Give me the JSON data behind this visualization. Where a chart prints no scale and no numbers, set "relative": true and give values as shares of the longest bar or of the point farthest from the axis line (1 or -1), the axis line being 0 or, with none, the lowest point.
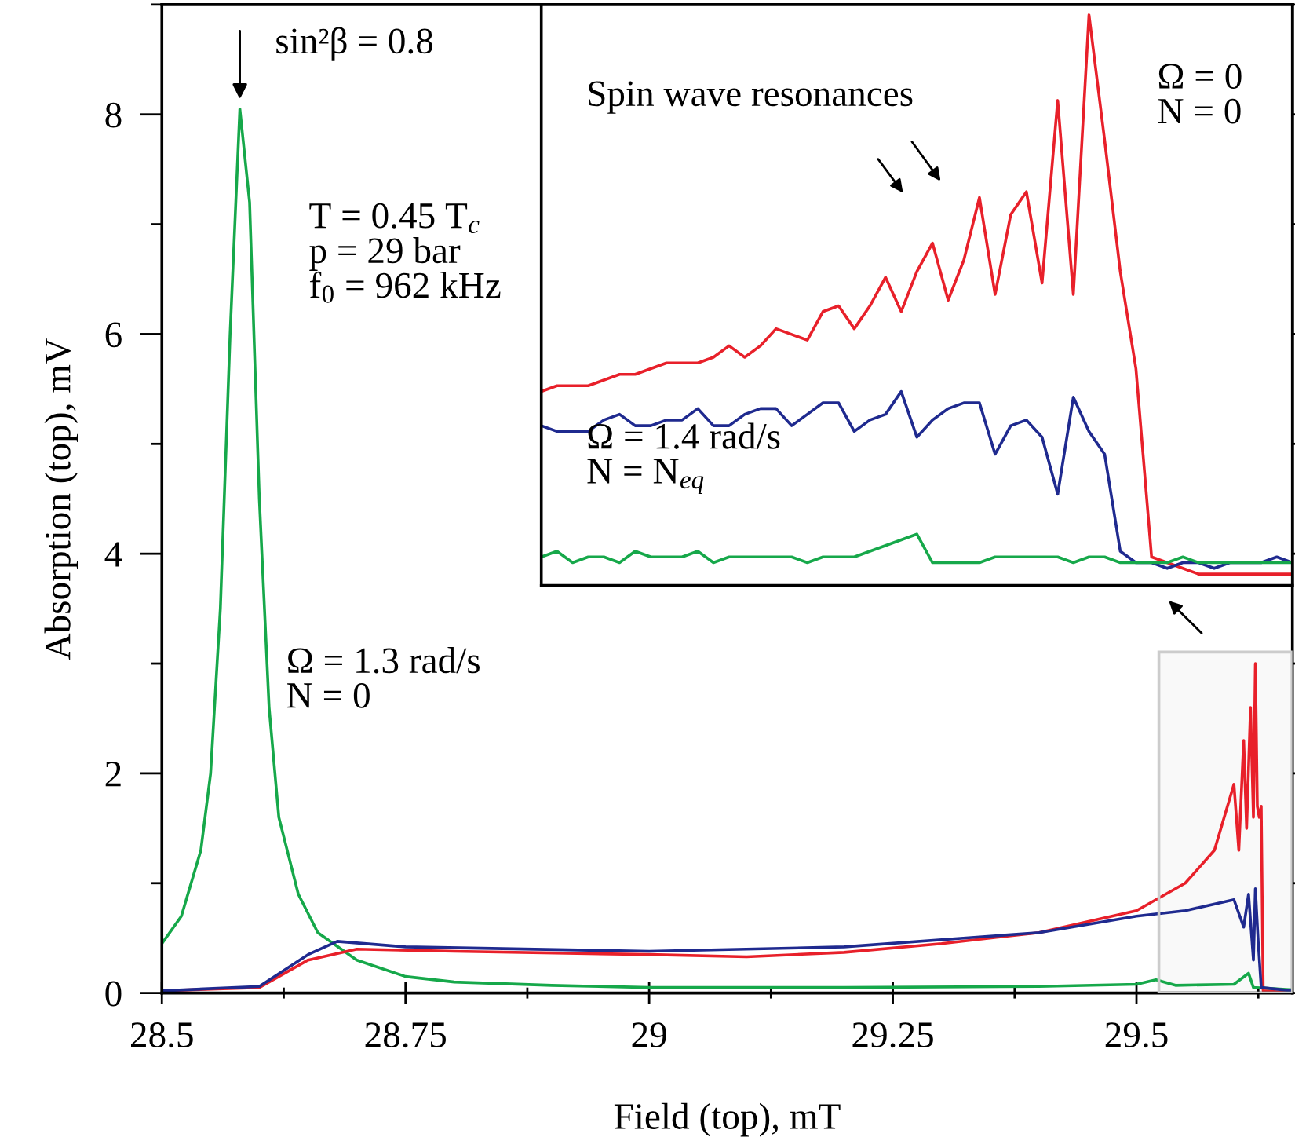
{
  "chart_data": [
    {
      "type": "line",
      "xlabel": "Field (top), mT",
      "ylabel": "Absorption (top), mV",
      "xlim": [
        28.5,
        29.66
      ],
      "ylim": [
        0,
        9
      ],
      "xticks": [
        28.5,
        28.75,
        29,
        29.25,
        29.5
      ],
      "yticks": [
        0,
        2,
        4,
        6,
        8
      ],
      "grid": false,
      "legend": false,
      "series": [
        {
          "color": "#16a84a",
          "x": [
            28.5,
            28.52,
            28.54,
            28.55,
            28.56,
            28.57,
            28.58,
            28.59,
            28.6,
            28.61,
            28.62,
            28.64,
            28.66,
            28.7,
            28.75,
            28.8,
            28.9,
            29.0,
            29.2,
            29.4,
            29.5,
            29.52,
            29.54,
            29.6,
            29.615,
            29.62,
            29.66
          ],
          "values": [
            0.45,
            0.7,
            1.3,
            2.0,
            3.5,
            6.0,
            8.05,
            7.2,
            4.5,
            2.6,
            1.6,
            0.9,
            0.55,
            0.3,
            0.15,
            0.1,
            0.07,
            0.05,
            0.05,
            0.06,
            0.08,
            0.12,
            0.07,
            0.08,
            0.18,
            0.05,
            0.03
          ]
        },
        {
          "color": "#e8202a",
          "x": [
            28.5,
            28.6,
            28.65,
            28.7,
            28.8,
            29.0,
            29.1,
            29.2,
            29.3,
            29.4,
            29.5,
            29.55,
            29.58,
            29.6,
            29.605,
            29.61,
            29.613,
            29.617,
            29.62,
            29.622,
            29.624,
            29.626,
            29.628,
            29.63,
            29.66
          ],
          "values": [
            0.02,
            0.05,
            0.3,
            0.4,
            0.38,
            0.35,
            0.33,
            0.37,
            0.45,
            0.55,
            0.75,
            1.0,
            1.3,
            1.9,
            1.3,
            2.3,
            1.5,
            2.6,
            1.6,
            3.0,
            1.7,
            1.6,
            1.7,
            0.02,
            0.0
          ]
        },
        {
          "color": "#1f2a8f",
          "x": [
            28.5,
            28.6,
            28.65,
            28.68,
            28.75,
            29.0,
            29.2,
            29.4,
            29.5,
            29.55,
            29.6,
            29.61,
            29.615,
            29.62,
            29.622,
            29.625,
            29.628,
            29.66
          ],
          "values": [
            0.02,
            0.06,
            0.35,
            0.47,
            0.42,
            0.38,
            0.42,
            0.55,
            0.7,
            0.75,
            0.85,
            0.6,
            0.9,
            0.3,
            0.95,
            0.45,
            0.05,
            0.02
          ]
        }
      ],
      "bands": [
        {
          "axis": "x",
          "from": 29.523,
          "to": 29.66,
          "color": "#cccccc"
        }
      ],
      "annotations": [
        {
          "text": "sin²β = 0.8",
          "x": 28.58,
          "y": 8.05
        },
        "T = 0.45 T$_{c}$\np = 29 bar\nf$_{0}$ = 962 kHz",
        "Ω = 1.3 rad/s\nN = 0"
      ]
    },
    {
      "type": "line",
      "relative": true,
      "legend": false,
      "categories": [
        null,
        null,
        null,
        null,
        null,
        null,
        null,
        null,
        null,
        null,
        null,
        null,
        null,
        null,
        null,
        null,
        null,
        null,
        null,
        null,
        null,
        null,
        null,
        null,
        null,
        null,
        null,
        null,
        null,
        null,
        null,
        null,
        null,
        null,
        null,
        null,
        null,
        null,
        null,
        null,
        null,
        null,
        null,
        null,
        null,
        null,
        null,
        null,
        null
      ],
      "series": [
        {
          "color": "#e8202a",
          "values": [
            0.34,
            0.35,
            0.35,
            0.35,
            0.36,
            0.37,
            0.37,
            0.38,
            0.39,
            0.39,
            0.39,
            0.4,
            0.42,
            0.4,
            0.42,
            0.45,
            0.44,
            0.43,
            0.48,
            0.49,
            0.45,
            0.49,
            0.54,
            0.48,
            0.55,
            0.6,
            0.5,
            0.57,
            0.68,
            0.51,
            0.65,
            0.69,
            0.53,
            0.85,
            0.51,
            1.0,
            0.78,
            0.55,
            0.38,
            0.05,
            0.04,
            0.03,
            0.02,
            0.02,
            0.02,
            0.02,
            0.02,
            0.02,
            0.02
          ]
        },
        {
          "color": "#1f2a8f",
          "values": [
            0.28,
            0.27,
            0.27,
            0.27,
            0.29,
            0.3,
            0.28,
            0.28,
            0.29,
            0.29,
            0.31,
            0.28,
            0.28,
            0.3,
            0.31,
            0.31,
            0.28,
            0.3,
            0.32,
            0.32,
            0.27,
            0.29,
            0.3,
            0.34,
            0.26,
            0.29,
            0.31,
            0.32,
            0.32,
            0.23,
            0.28,
            0.29,
            0.26,
            0.16,
            0.33,
            0.27,
            0.23,
            0.06,
            0.04,
            0.04,
            0.03,
            0.04,
            0.04,
            0.03,
            0.04,
            0.04,
            0.04,
            0.05,
            0.04
          ]
        },
        {
          "color": "#16a84a",
          "values": [
            0.05,
            0.06,
            0.04,
            0.05,
            0.05,
            0.04,
            0.06,
            0.05,
            0.05,
            0.05,
            0.06,
            0.04,
            0.05,
            0.05,
            0.05,
            0.05,
            0.05,
            0.04,
            0.05,
            0.05,
            0.05,
            0.06,
            0.07,
            0.08,
            0.09,
            0.04,
            0.04,
            0.04,
            0.04,
            0.05,
            0.05,
            0.05,
            0.05,
            0.05,
            0.04,
            0.05,
            0.05,
            0.04,
            0.04,
            0.04,
            0.04,
            0.05,
            0.04,
            0.04,
            0.04,
            0.04,
            0.04,
            0.04,
            0.04
          ]
        }
      ],
      "annotations": [
        "Spin wave resonances",
        "Ω = 0\nN = 0",
        "Ω = 1.4 rad/s\nN = N$_{eq}$"
      ]
    }
  ]
}
